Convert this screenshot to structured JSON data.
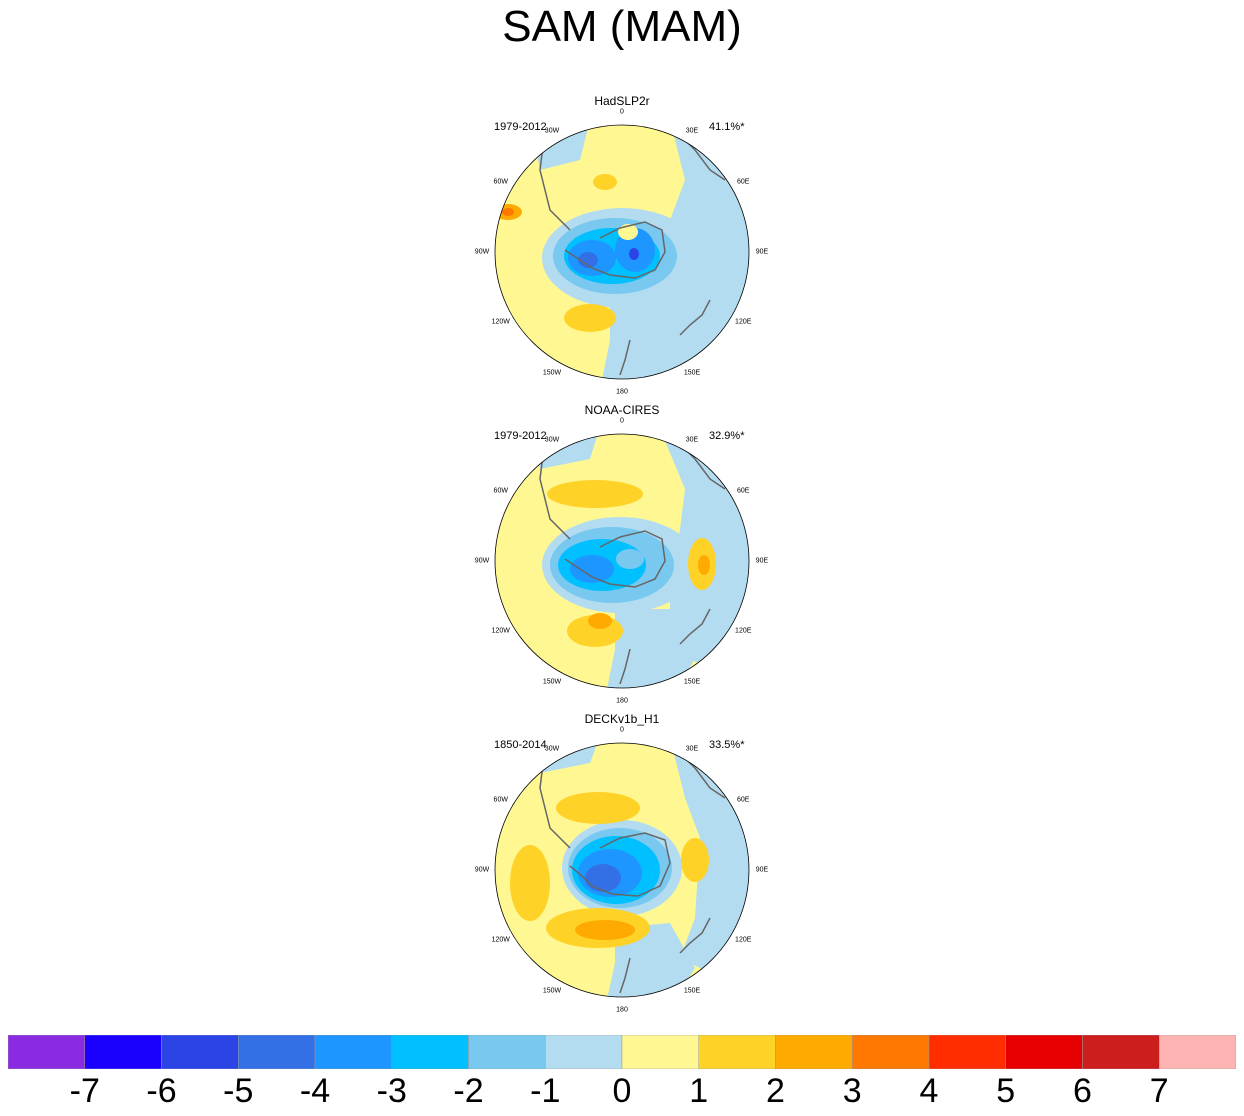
{
  "title": "SAM (MAM)",
  "panels": [
    {
      "name": "HadSLP2r",
      "period": "1979-2012",
      "variance": "41.1%*"
    },
    {
      "name": "NOAA-CIRES",
      "period": "1979-2012",
      "variance": "32.9%*"
    },
    {
      "name": "DECKv1b_H1",
      "period": "1850-2014",
      "variance": "33.5%*"
    }
  ],
  "longitude_labels": [
    "0",
    "30E",
    "60E",
    "90E",
    "120E",
    "150E",
    "180",
    "150W",
    "120W",
    "90W",
    "60W",
    "30W"
  ],
  "chart_data": {
    "type": "heatmap",
    "projection": "south polar stereographic",
    "title": "SAM (MAM)",
    "colorbar": {
      "ticks": [
        "-7",
        "-6",
        "-5",
        "-4",
        "-3",
        "-2",
        "-1",
        "0",
        "1",
        "2",
        "3",
        "4",
        "5",
        "6",
        "7"
      ],
      "colors": [
        "#8a2be2",
        "#1a00ff",
        "#2c44e6",
        "#3370e6",
        "#1e96ff",
        "#00c0ff",
        "#78c8f0",
        "#b4dcf0",
        "#fff892",
        "#ffd228",
        "#ffaa00",
        "#ff7800",
        "#ff2d00",
        "#e60000",
        "#cd1e1e",
        "#ffb4b4"
      ]
    }
  }
}
